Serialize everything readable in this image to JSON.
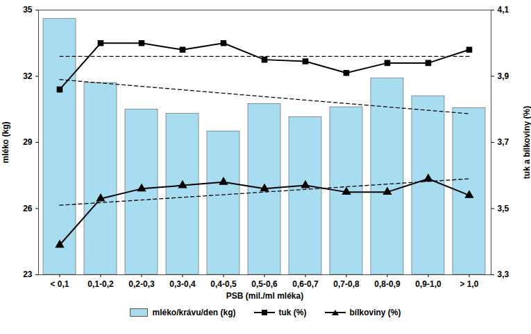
{
  "chart_data": {
    "type": "bar",
    "x_label": "PSB (mil./ml mléka)",
    "y_label": "mléko (kg)",
    "y2_label": "tuk a bílkoviny (%)",
    "categories": [
      "< 0,1",
      "0,1-0,2",
      "0,2-0,3",
      "0,3-0,4",
      "0,4-0,5",
      "0,5-0,6",
      "0,6-0,7",
      "0,7-0,8",
      "0,8-0,9",
      "0,9-1,0",
      "> 1,0"
    ],
    "ylim": [
      23,
      35
    ],
    "yticks": [
      23,
      26,
      29,
      32,
      35
    ],
    "y2lim": [
      3.3,
      4.1
    ],
    "y2ticks": [
      {
        "value": 3.3,
        "label": "3,3"
      },
      {
        "value": 3.5,
        "label": "3,5"
      },
      {
        "value": 3.7,
        "label": "3,7"
      },
      {
        "value": 3.9,
        "label": "3,9"
      },
      {
        "value": 4.1,
        "label": "4,1"
      }
    ],
    "legend": "bottom",
    "series": [
      {
        "name": "mléko/krávu/den (kg)",
        "type": "bar",
        "color": "#a8dcf0",
        "values": [
          34.6,
          31.7,
          30.5,
          30.3,
          29.5,
          30.75,
          30.15,
          30.6,
          31.9,
          31.1,
          30.55
        ],
        "trend": [
          31.85,
          30.3
        ]
      },
      {
        "name": "tuk (%)",
        "type": "line",
        "axis": "y2",
        "color": "#000000",
        "marker": "square",
        "values": [
          3.86,
          4.0,
          4.0,
          3.98,
          4.0,
          3.95,
          3.945,
          3.91,
          3.94,
          3.94,
          3.98
        ],
        "trend": [
          3.96,
          3.96
        ]
      },
      {
        "name": "bílkoviny (%)",
        "type": "line",
        "axis": "y2",
        "color": "#000000",
        "marker": "triangle",
        "values": [
          3.39,
          3.53,
          3.56,
          3.57,
          3.58,
          3.56,
          3.57,
          3.55,
          3.55,
          3.59,
          3.54
        ],
        "trend": [
          3.51,
          3.59
        ]
      }
    ]
  }
}
